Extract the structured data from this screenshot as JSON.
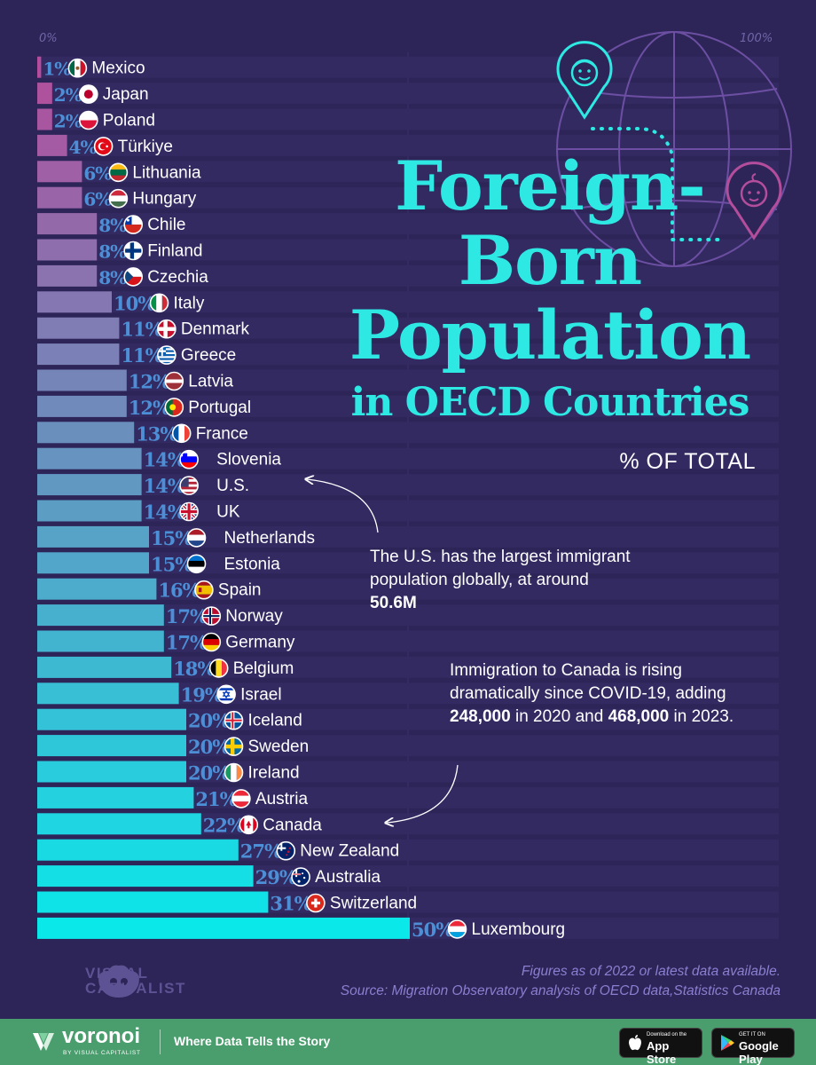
{
  "chart_data": {
    "type": "bar",
    "orientation": "horizontal",
    "title": "Foreign-Born Population in OECD Countries",
    "title_lines": [
      "Foreign-",
      "Born",
      "Population",
      "in OECD Countries"
    ],
    "subtitle": "% OF TOTAL",
    "axis_min_label": "0%",
    "axis_max_label": "100%",
    "xlim": [
      0,
      100
    ],
    "categories": [
      "Mexico",
      "Japan",
      "Poland",
      "Türkiye",
      "Lithuania",
      "Hungary",
      "Chile",
      "Finland",
      "Czechia",
      "Italy",
      "Denmark",
      "Greece",
      "Latvia",
      "Portugal",
      "France",
      "Slovenia",
      "U.S.",
      "UK",
      "Netherlands",
      "Estonia",
      "Spain",
      "Norway",
      "Germany",
      "Belgium",
      "Israel",
      "Iceland",
      "Sweden",
      "Ireland",
      "Austria",
      "Canada",
      "New Zealand",
      "Australia",
      "Switzerland",
      "Luxembourg"
    ],
    "values": [
      1,
      2,
      2,
      4,
      6,
      6,
      8,
      8,
      8,
      10,
      11,
      11,
      12,
      12,
      13,
      14,
      14,
      14,
      15,
      15,
      16,
      17,
      17,
      18,
      19,
      20,
      20,
      20,
      21,
      22,
      27,
      29,
      31,
      50
    ],
    "value_labels": [
      "1%",
      "2%",
      "2%",
      "4%",
      "6%",
      "6%",
      "8%",
      "8%",
      "8%",
      "10%",
      "11%",
      "11%",
      "12%",
      "12%",
      "13%",
      "14%",
      "14%",
      "14%",
      "15%",
      "15%",
      "16%",
      "17%",
      "17%",
      "18%",
      "19%",
      "20%",
      "20%",
      "20%",
      "21%",
      "22%",
      "27%",
      "29%",
      "31%",
      "50%"
    ],
    "flag_icons": [
      "flag-mexico",
      "flag-japan",
      "flag-poland",
      "flag-turkiye",
      "flag-lithuania",
      "flag-hungary",
      "flag-chile",
      "flag-finland",
      "flag-czechia",
      "flag-italy",
      "flag-denmark",
      "flag-greece",
      "flag-latvia",
      "flag-portugal",
      "flag-france",
      "flag-slovenia",
      "flag-us",
      "flag-uk",
      "flag-netherlands",
      "flag-estonia",
      "flag-spain",
      "flag-norway",
      "flag-germany",
      "flag-belgium",
      "flag-israel",
      "flag-iceland",
      "flag-sweden",
      "flag-ireland",
      "flag-austria",
      "flag-canada",
      "flag-new-zealand",
      "flag-australia",
      "flag-switzerland",
      "flag-luxembourg"
    ],
    "bar_color_start": "#b34d9c",
    "bar_color_end": "#0ae8ea",
    "value_label_color": "#4d8fd6"
  },
  "annotations": {
    "us_note": {
      "pre": "The U.S. has the largest immigrant population globally, at around ",
      "bold": "50.6M"
    },
    "canada_note": {
      "p1": "Immigration to Canada is rising dramatically since COVID-19, adding ",
      "b1": "248,000",
      "p2": " in 2020 and ",
      "b2": "468,000",
      "p3": " in 2023."
    }
  },
  "footnote": {
    "line1": "Figures as of 2022 or latest data available.",
    "line2": "Source: Migration Observatory analysis of OECD data,Statistics Canada"
  },
  "branding": {
    "vc_line1": "VISUAL",
    "vc_line2": "CAPITALIST",
    "voronoi_name": "voronoi",
    "voronoi_by": "BY VISUAL CAPITALIST",
    "tagline": "Where Data Tells the Story",
    "appstore_small": "Download on the",
    "appstore_big": "App Store",
    "googleplay_small": "GET IT ON",
    "googleplay_big": "Google Play"
  },
  "colors": {
    "background": "#2d2557",
    "title": "#2ee8e4",
    "footer_bg": "#4a9e6e",
    "footnote": "#8a7fd0"
  }
}
